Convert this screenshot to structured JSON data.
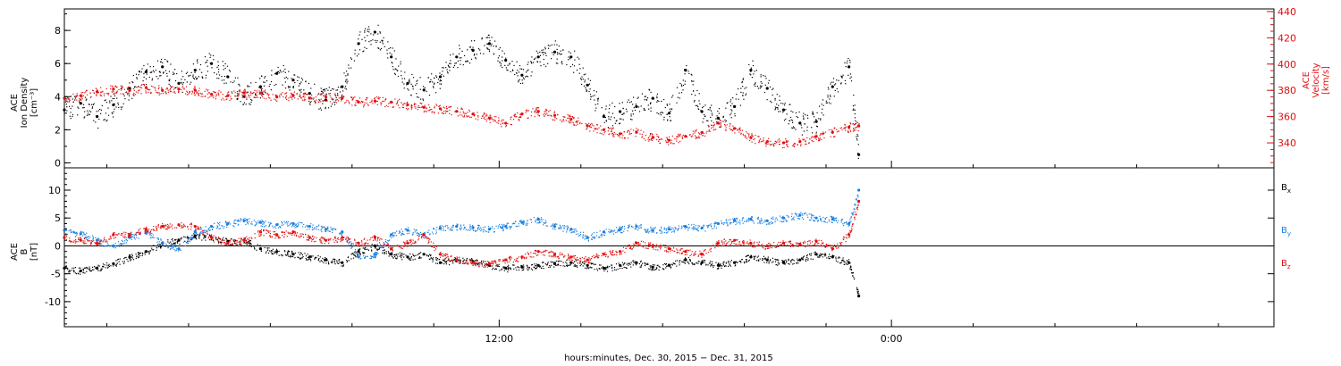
{
  "chart_data": [
    {
      "type": "scatter",
      "panel": "top",
      "ylabel_lines": [
        "ACE",
        "Ion Density",
        "[cm⁻³]"
      ],
      "y2label_lines": [
        "ACE",
        "Velocity",
        "[km/s]"
      ],
      "ylim": [
        -0.3,
        9.3
      ],
      "yticks": [
        "0",
        "2",
        "4",
        "6",
        "8"
      ],
      "y2lim": [
        321,
        442
      ],
      "y2ticks": [
        "340",
        "360",
        "380",
        "400",
        "420",
        "440"
      ],
      "series": [
        {
          "axis": "left",
          "color": "#000000",
          "x": [
            0.0,
            0.5,
            1.0,
            1.5,
            2.0,
            2.5,
            3.0,
            3.5,
            4.0,
            4.5,
            5.0,
            5.5,
            6.0,
            6.5,
            7.0,
            7.5,
            8.0,
            8.5,
            9.0,
            9.5,
            10.0,
            10.5,
            11.0,
            11.5,
            12.0,
            12.5,
            13.0,
            13.5,
            14.0,
            14.5,
            15.0,
            15.5,
            16.0,
            16.5,
            17.0,
            17.5,
            18.0,
            18.5,
            19.0,
            19.5,
            20.0,
            20.5,
            21.0,
            21.5,
            22.0,
            22.5,
            23.0,
            23.5,
            24.0,
            24.3
          ],
          "y": [
            3.2,
            3.6,
            2.8,
            3.5,
            4.5,
            5.5,
            5.8,
            4.8,
            5.6,
            6.0,
            5.2,
            4.0,
            4.6,
            5.4,
            5.0,
            4.2,
            3.8,
            4.6,
            7.2,
            7.9,
            6.4,
            4.8,
            4.4,
            5.2,
            6.4,
            6.8,
            7.2,
            6.2,
            5.3,
            6.4,
            6.7,
            6.4,
            4.7,
            2.8,
            3.1,
            3.4,
            3.9,
            3.0,
            5.6,
            3.1,
            2.7,
            3.4,
            5.6,
            4.5,
            3.2,
            2.4,
            2.5,
            4.6,
            5.8,
            0.5
          ]
        },
        {
          "axis": "right",
          "color": "#e01010",
          "x": [
            0.0,
            0.5,
            1.0,
            1.5,
            2.0,
            2.5,
            3.0,
            3.5,
            4.0,
            4.5,
            5.0,
            5.5,
            6.0,
            6.5,
            7.0,
            7.5,
            8.0,
            8.5,
            9.0,
            9.5,
            10.0,
            10.5,
            11.0,
            11.5,
            12.0,
            12.5,
            13.0,
            13.5,
            14.0,
            14.5,
            15.0,
            15.5,
            16.0,
            16.5,
            17.0,
            17.5,
            18.0,
            18.5,
            19.0,
            19.5,
            20.0,
            20.5,
            21.0,
            21.5,
            22.0,
            22.5,
            23.0,
            23.5,
            24.0,
            24.3
          ],
          "y": [
            374,
            376,
            379,
            381,
            380,
            382,
            380,
            381,
            380,
            377,
            376,
            378,
            378,
            375,
            376,
            374,
            375,
            374,
            371,
            372,
            371,
            369,
            367,
            366,
            364,
            362,
            359,
            355,
            362,
            364,
            361,
            358,
            353,
            350,
            347,
            348,
            344,
            342,
            345,
            348,
            355,
            351,
            344,
            341,
            340,
            341,
            345,
            348,
            352,
            353
          ]
        }
      ]
    },
    {
      "type": "scatter",
      "panel": "bottom",
      "ylabel_lines": [
        "ACE",
        "B",
        "[nT]"
      ],
      "ylim": [
        -14.5,
        14.0
      ],
      "yticks": [
        "-10",
        "-5",
        "0",
        "5",
        "10"
      ],
      "zero_line": true,
      "legend_placement": "right",
      "series": [
        {
          "name": "Bx",
          "color": "#000000",
          "x": [
            0.0,
            0.5,
            1.0,
            1.5,
            2.0,
            2.5,
            3.0,
            3.5,
            4.0,
            4.5,
            5.0,
            5.5,
            6.0,
            6.5,
            7.0,
            7.5,
            8.0,
            8.5,
            9.0,
            9.5,
            10.0,
            10.5,
            11.0,
            11.5,
            12.0,
            12.5,
            13.0,
            13.5,
            14.0,
            14.5,
            15.0,
            15.5,
            16.0,
            16.5,
            17.0,
            17.5,
            18.0,
            18.5,
            19.0,
            19.5,
            20.0,
            20.5,
            21.0,
            21.5,
            22.0,
            22.5,
            23.0,
            23.5,
            24.0,
            24.3
          ],
          "y": [
            -4.0,
            -4.5,
            -4.0,
            -3.2,
            -2.0,
            -1.0,
            0.5,
            1.0,
            1.8,
            1.5,
            0.8,
            1.0,
            -0.5,
            -1.0,
            -1.5,
            -2.0,
            -2.5,
            -3.0,
            -1.0,
            0.0,
            -1.5,
            -2.0,
            -1.5,
            -3.0,
            -2.5,
            -2.8,
            -3.5,
            -4.0,
            -3.8,
            -3.5,
            -3.2,
            -3.0,
            -3.5,
            -4.0,
            -3.5,
            -3.0,
            -3.8,
            -3.5,
            -2.5,
            -3.0,
            -3.5,
            -3.0,
            -2.0,
            -2.5,
            -3.0,
            -2.5,
            -1.5,
            -2.0,
            -3.0,
            -9.0
          ]
        },
        {
          "name": "By",
          "color": "#1a7fe0",
          "x": [
            0.0,
            0.5,
            1.0,
            1.5,
            2.0,
            2.5,
            3.0,
            3.5,
            4.0,
            4.5,
            5.0,
            5.5,
            6.0,
            6.5,
            7.0,
            7.5,
            8.0,
            8.5,
            9.0,
            9.5,
            10.0,
            10.5,
            11.0,
            11.5,
            12.0,
            12.5,
            13.0,
            13.5,
            14.0,
            14.5,
            15.0,
            15.5,
            16.0,
            16.5,
            17.0,
            17.5,
            18.0,
            18.5,
            19.0,
            19.5,
            20.0,
            20.5,
            21.0,
            21.5,
            22.0,
            22.5,
            23.0,
            23.5,
            24.0,
            24.3
          ],
          "y": [
            2.8,
            2.2,
            1.0,
            0.0,
            1.5,
            2.5,
            0.5,
            -0.5,
            2.5,
            3.5,
            4.0,
            4.5,
            4.2,
            3.8,
            4.0,
            3.5,
            3.0,
            2.5,
            -2.0,
            -1.5,
            2.0,
            2.8,
            2.0,
            3.2,
            3.5,
            3.3,
            3.0,
            3.5,
            4.2,
            4.8,
            3.5,
            3.0,
            1.5,
            2.5,
            3.0,
            3.5,
            2.8,
            3.0,
            3.5,
            3.2,
            4.0,
            4.5,
            4.8,
            4.5,
            5.0,
            5.5,
            5.0,
            4.8,
            4.0,
            10.0
          ]
        },
        {
          "name": "Bz",
          "color": "#e01010",
          "x": [
            0.0,
            0.5,
            1.0,
            1.5,
            2.0,
            2.5,
            3.0,
            3.5,
            4.0,
            4.5,
            5.0,
            5.5,
            6.0,
            6.5,
            7.0,
            7.5,
            8.0,
            8.5,
            9.0,
            9.5,
            10.0,
            10.5,
            11.0,
            11.5,
            12.0,
            12.5,
            13.0,
            13.5,
            14.0,
            14.5,
            15.0,
            15.5,
            16.0,
            16.5,
            17.0,
            17.5,
            18.0,
            18.5,
            19.0,
            19.5,
            20.0,
            20.5,
            21.0,
            21.5,
            22.0,
            22.5,
            23.0,
            23.5,
            24.0,
            24.3
          ],
          "y": [
            1.5,
            1.0,
            0.5,
            2.0,
            2.0,
            3.0,
            3.5,
            3.8,
            3.5,
            1.5,
            0.5,
            1.0,
            2.5,
            2.0,
            2.5,
            1.5,
            1.0,
            1.5,
            0.5,
            1.5,
            -0.5,
            0.5,
            2.0,
            -1.5,
            -2.5,
            -3.0,
            -3.2,
            -2.5,
            -2.0,
            -1.0,
            -1.5,
            -2.0,
            -2.5,
            -1.5,
            -1.0,
            0.5,
            0.0,
            -0.5,
            -1.0,
            -1.5,
            0.5,
            1.0,
            0.5,
            0.0,
            0.5,
            0.3,
            0.8,
            -0.5,
            2.0,
            8.0
          ]
        }
      ]
    }
  ],
  "xaxis": {
    "label": "hours:minutes, Dec. 30, 2015 − Dec. 31, 2015",
    "xlim": [
      0,
      37
    ],
    "ticks": [
      {
        "x": 13.3,
        "label": "12:00"
      },
      {
        "x": 25.3,
        "label": "0:00"
      }
    ],
    "minor_ticks": [
      1.3,
      3.8,
      6.3,
      8.8,
      11.3,
      15.8,
      18.3,
      20.8,
      23.3,
      27.8,
      30.3,
      32.8,
      35.3
    ]
  }
}
